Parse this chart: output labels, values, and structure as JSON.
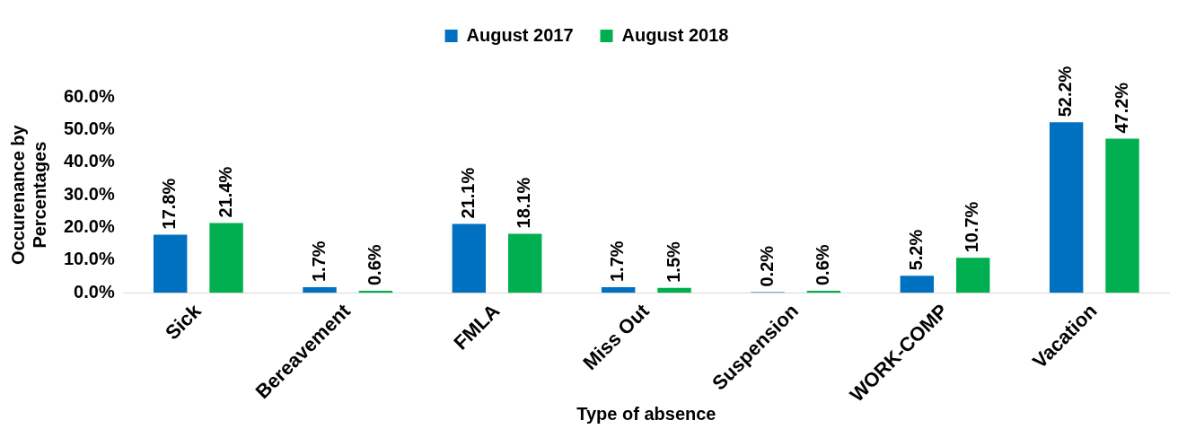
{
  "chart_data": {
    "type": "bar",
    "xlabel": "Type of absence",
    "ylabel": "Occurenance by Percentages",
    "categories": [
      "Sick",
      "Bereavement",
      "FMLA",
      "Miss Out",
      "Suspension",
      "WORK-COMP",
      "Vacation"
    ],
    "series": [
      {
        "name": "August 2017",
        "color": "#0070c0",
        "values": [
          17.8,
          1.7,
          21.1,
          1.7,
          0.2,
          5.2,
          52.2
        ],
        "value_labels": [
          "17.8%",
          "1.7%",
          "21.1%",
          "1.7%",
          "0.2%",
          "5.2%",
          "52.2%"
        ]
      },
      {
        "name": "August 2018",
        "color": "#00b050",
        "values": [
          21.4,
          0.6,
          18.1,
          1.5,
          0.6,
          10.7,
          47.2
        ],
        "value_labels": [
          "21.4%",
          "0.6%",
          "18.1%",
          "1.5%",
          "0.6%",
          "10.7%",
          "47.2%"
        ]
      }
    ],
    "ylim": [
      0,
      60
    ],
    "yticks": [
      {
        "value": 0,
        "label": "0.0%"
      },
      {
        "value": 10,
        "label": "10.0%"
      },
      {
        "value": 20,
        "label": "20.0%"
      },
      {
        "value": 30,
        "label": "30.0%"
      },
      {
        "value": 40,
        "label": "40.0%"
      },
      {
        "value": 50,
        "label": "50.0%"
      },
      {
        "value": 60,
        "label": "60.0%"
      }
    ],
    "grid": false,
    "legend": "top"
  }
}
